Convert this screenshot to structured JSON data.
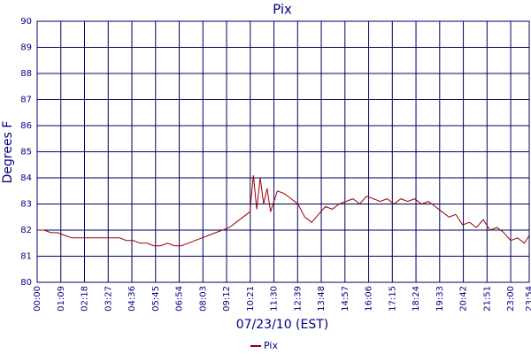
{
  "chart_data": {
    "type": "line",
    "title": "Pix",
    "y_label": "Degrees F",
    "x_label": "07/23/10 (EST)",
    "x": [
      "00:00",
      "00:20",
      "00:40",
      "01:00",
      "01:20",
      "01:40",
      "02:00",
      "02:20",
      "02:40",
      "03:00",
      "03:20",
      "03:40",
      "04:00",
      "04:20",
      "04:40",
      "05:00",
      "05:20",
      "05:40",
      "06:00",
      "06:20",
      "06:40",
      "07:00",
      "07:20",
      "07:40",
      "08:00",
      "08:20",
      "08:40",
      "09:00",
      "09:20",
      "09:40",
      "10:00",
      "10:20",
      "10:30",
      "10:40",
      "10:50",
      "11:00",
      "11:10",
      "11:20",
      "11:40",
      "12:00",
      "12:20",
      "12:40",
      "13:00",
      "13:20",
      "13:40",
      "14:00",
      "14:20",
      "14:40",
      "15:00",
      "15:20",
      "15:40",
      "16:00",
      "16:20",
      "16:40",
      "17:00",
      "17:20",
      "17:40",
      "18:00",
      "18:20",
      "18:40",
      "19:00",
      "19:20",
      "19:40",
      "20:00",
      "20:20",
      "20:40",
      "21:00",
      "21:20",
      "21:40",
      "22:00",
      "22:20",
      "22:40",
      "23:00",
      "23:20",
      "23:40",
      "23:54"
    ],
    "series": [
      {
        "name": "Pix",
        "color": "#990000",
        "values": [
          82.0,
          82.0,
          81.9,
          81.9,
          81.8,
          81.7,
          81.7,
          81.7,
          81.7,
          81.7,
          81.7,
          81.7,
          81.7,
          81.6,
          81.6,
          81.5,
          81.5,
          81.4,
          81.4,
          81.5,
          81.4,
          81.4,
          81.5,
          81.6,
          81.7,
          81.8,
          81.9,
          82.0,
          82.1,
          82.3,
          82.5,
          82.7,
          84.1,
          82.8,
          84.0,
          83.0,
          83.6,
          82.7,
          83.5,
          83.4,
          83.2,
          83.0,
          82.5,
          82.3,
          82.6,
          82.9,
          82.8,
          83.0,
          83.1,
          83.2,
          83.0,
          83.3,
          83.2,
          83.1,
          83.2,
          83.0,
          83.2,
          83.1,
          83.2,
          83.0,
          83.1,
          82.9,
          82.7,
          82.5,
          82.6,
          82.2,
          82.3,
          82.1,
          82.4,
          82.0,
          82.1,
          81.9,
          81.6,
          81.7,
          81.5,
          81.8
        ]
      }
    ],
    "xlim": [
      "00:00",
      "23:54"
    ],
    "xticks": [
      "00:00",
      "01:09",
      "02:18",
      "03:27",
      "04:36",
      "05:45",
      "06:54",
      "08:03",
      "09:12",
      "10:21",
      "11:30",
      "12:39",
      "13:48",
      "14:57",
      "16:06",
      "17:15",
      "18:24",
      "19:33",
      "20:42",
      "21:51",
      "23:00",
      "23:54"
    ],
    "ylim": [
      80,
      90
    ],
    "yticks": [
      80,
      81,
      82,
      83,
      84,
      85,
      86,
      87,
      88,
      89,
      90
    ],
    "grid": true,
    "legend": "bottom"
  }
}
